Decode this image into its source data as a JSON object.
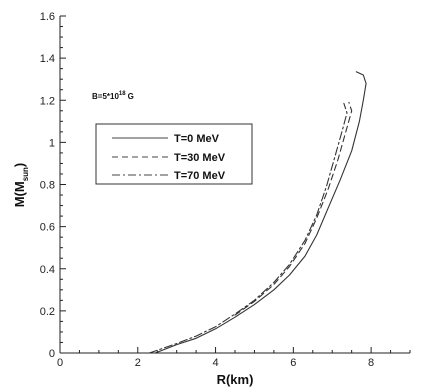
{
  "chart_data": {
    "type": "line",
    "xlabel": "R(km)",
    "ylabel_main": "M(M",
    "ylabel_sub": "sun",
    "ylabel_close": ")",
    "annotation_base": "B=5*10",
    "annotation_exp": "18",
    "annotation_unit": "G",
    "xlim": [
      0,
      9
    ],
    "ylim": [
      0,
      1.6
    ],
    "x_ticks": [
      0,
      2,
      4,
      6,
      8
    ],
    "y_ticks": [
      0,
      0.2,
      0.4,
      0.6,
      0.8,
      1.0,
      1.2,
      1.4,
      1.6
    ],
    "x_tick_labels": [
      "0",
      "2",
      "4",
      "6",
      "8"
    ],
    "y_tick_labels": [
      "0",
      "0.2",
      "0.4",
      "0.6",
      "0.8",
      "1",
      "1.2",
      "1.4",
      "1.6"
    ],
    "grid": false,
    "legend_position": "upper-left",
    "series": [
      {
        "name": "T=0 MeV",
        "dash": "solid",
        "color": "#333333",
        "points": [
          [
            2.45,
            0.0
          ],
          [
            3.0,
            0.04
          ],
          [
            3.5,
            0.07
          ],
          [
            4.0,
            0.115
          ],
          [
            4.5,
            0.17
          ],
          [
            5.0,
            0.23
          ],
          [
            5.5,
            0.3
          ],
          [
            5.9,
            0.37
          ],
          [
            6.3,
            0.46
          ],
          [
            6.6,
            0.56
          ],
          [
            6.9,
            0.69
          ],
          [
            7.2,
            0.82
          ],
          [
            7.5,
            0.96
          ],
          [
            7.7,
            1.1
          ],
          [
            7.8,
            1.2
          ],
          [
            7.87,
            1.28
          ],
          [
            7.8,
            1.32
          ],
          [
            7.62,
            1.335
          ]
        ]
      },
      {
        "name": "T=30 MeV",
        "dash": "dashed",
        "color": "#333333",
        "points": [
          [
            4.5,
            0.18
          ],
          [
            5.0,
            0.245
          ],
          [
            5.5,
            0.325
          ],
          [
            5.9,
            0.41
          ],
          [
            6.3,
            0.52
          ],
          [
            6.6,
            0.64
          ],
          [
            6.9,
            0.78
          ],
          [
            7.15,
            0.92
          ],
          [
            7.35,
            1.05
          ],
          [
            7.5,
            1.15
          ],
          [
            7.43,
            1.19
          ]
        ]
      },
      {
        "name": "T=70 MeV",
        "dash": "dashdot",
        "color": "#333333",
        "points": [
          [
            2.3,
            0.0
          ],
          [
            3.0,
            0.045
          ],
          [
            3.5,
            0.08
          ],
          [
            4.0,
            0.125
          ],
          [
            4.5,
            0.185
          ],
          [
            5.0,
            0.25
          ],
          [
            5.5,
            0.335
          ],
          [
            5.9,
            0.42
          ],
          [
            6.3,
            0.535
          ],
          [
            6.6,
            0.655
          ],
          [
            6.85,
            0.79
          ],
          [
            7.05,
            0.92
          ],
          [
            7.25,
            1.05
          ],
          [
            7.38,
            1.14
          ],
          [
            7.3,
            1.185
          ]
        ]
      }
    ]
  }
}
